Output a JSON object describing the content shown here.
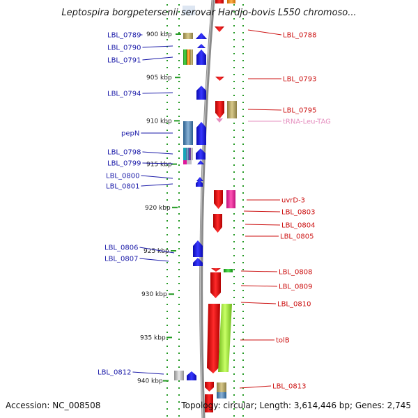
{
  "title": "Leptospira borgpetersenii serovar Hardjo-bovis L550 chromoso...",
  "footer": {
    "accession": "Accession: NC_008508",
    "summary": "Topology: circular; Length: 3,614,446 bp; Genes: 2,745"
  },
  "ticks": [
    {
      "label": "900 kbp",
      "kbp": 900
    },
    {
      "label": "905 kbp",
      "kbp": 905
    },
    {
      "label": "910 kbp",
      "kbp": 910
    },
    {
      "label": "915 kbp",
      "kbp": 915
    },
    {
      "label": "920 kbp",
      "kbp": 920
    },
    {
      "label": "925 kbp",
      "kbp": 925
    },
    {
      "label": "930 kbp",
      "kbp": 930
    },
    {
      "label": "935 kbp",
      "kbp": 935
    },
    {
      "label": "940 kbp",
      "kbp": 940
    }
  ],
  "left_genes": [
    {
      "name": "LBL_0789"
    },
    {
      "name": "LBL_0790"
    },
    {
      "name": "LBL_0791"
    },
    {
      "name": "LBL_0794"
    },
    {
      "name": "pepN"
    },
    {
      "name": "LBL_0798"
    },
    {
      "name": "LBL_0799"
    },
    {
      "name": "LBL_0800"
    },
    {
      "name": "LBL_0801"
    },
    {
      "name": "LBL_0806"
    },
    {
      "name": "LBL_0807"
    },
    {
      "name": "LBL_0812"
    }
  ],
  "right_genes": [
    {
      "name": "LBL_0788",
      "kind": "gene"
    },
    {
      "name": "LBL_0793",
      "kind": "gene"
    },
    {
      "name": "LBL_0795",
      "kind": "gene"
    },
    {
      "name": "tRNA-Leu-TAG",
      "kind": "trna"
    },
    {
      "name": "uvrD-3",
      "kind": "gene"
    },
    {
      "name": "LBL_0803",
      "kind": "gene"
    },
    {
      "name": "LBL_0804",
      "kind": "gene"
    },
    {
      "name": "LBL_0805",
      "kind": "gene"
    },
    {
      "name": "LBL_0808",
      "kind": "gene"
    },
    {
      "name": "LBL_0809",
      "kind": "gene"
    },
    {
      "name": "LBL_0810",
      "kind": "gene"
    },
    {
      "name": "tolB",
      "kind": "gene"
    },
    {
      "name": "LBL_0813",
      "kind": "gene"
    }
  ],
  "colors": {
    "reverse_strand": "#1515e6",
    "forward_strand": "#e60f0f",
    "trna": "#e58fbf",
    "backbone": "#8a8a8a",
    "dotted_ring": "#229922"
  }
}
